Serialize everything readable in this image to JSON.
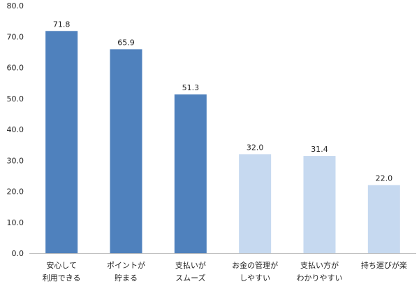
{
  "chart_data": {
    "type": "bar",
    "categories": [
      [
        "安心して",
        "利用できる"
      ],
      [
        "ポイントが",
        "貯まる"
      ],
      [
        "支払いが",
        "スムーズ"
      ],
      [
        "お金の管理が",
        "しやすい"
      ],
      [
        "支払い方が",
        "わかりやすい"
      ],
      [
        "持ち運びが楽"
      ]
    ],
    "values": [
      71.8,
      65.9,
      51.3,
      32.0,
      31.4,
      22.0
    ],
    "data_labels": [
      "71.8",
      "65.9",
      "51.3",
      "32.0",
      "31.4",
      "22.0"
    ],
    "bar_colors": [
      "#4f81bd",
      "#4f81bd",
      "#4f81bd",
      "#c6d9f0",
      "#c6d9f0",
      "#c6d9f0"
    ],
    "ylim": [
      0,
      80
    ],
    "yticks": [
      "0.0",
      "10.0",
      "20.0",
      "30.0",
      "40.0",
      "50.0",
      "60.0",
      "70.0",
      "80.0"
    ],
    "ytick_values": [
      0,
      10,
      20,
      30,
      40,
      50,
      60,
      70,
      80
    ],
    "grid": false,
    "legend": "none",
    "title": "",
    "xlabel": "",
    "ylabel": "",
    "axis_color": "#bfbfbf"
  }
}
